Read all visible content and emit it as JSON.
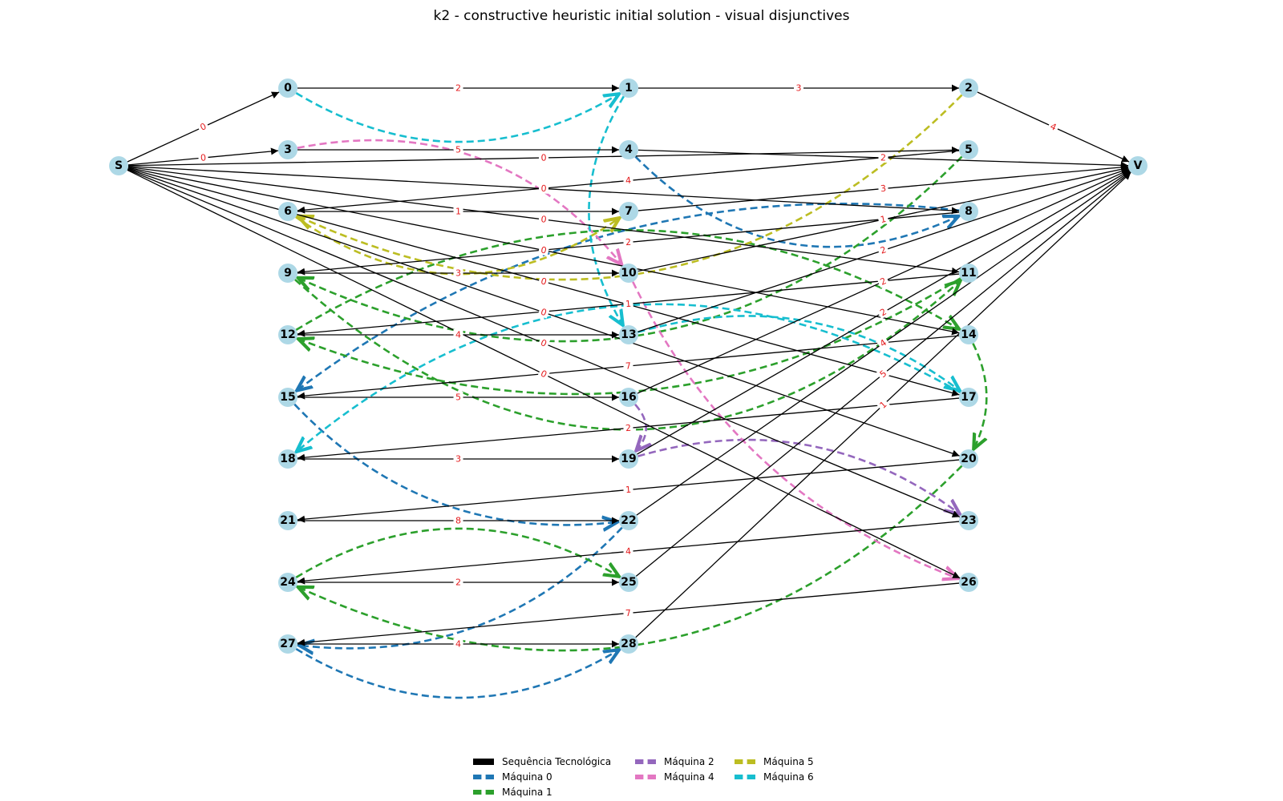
{
  "title": "k2 - constructive heuristic initial solution - visual disjunctives",
  "nodes": [
    "S",
    "0",
    "1",
    "2",
    "3",
    "4",
    "5",
    "6",
    "7",
    "8",
    "9",
    "10",
    "11",
    "12",
    "13",
    "14",
    "15",
    "16",
    "17",
    "18",
    "19",
    "20",
    "21",
    "22",
    "23",
    "24",
    "25",
    "26",
    "27",
    "28",
    "V"
  ],
  "tech_edges": [
    {
      "from": "S",
      "to": "0",
      "w": "0"
    },
    {
      "from": "S",
      "to": "3",
      "w": "0"
    },
    {
      "from": "S",
      "to": "5",
      "w": "0"
    },
    {
      "from": "S",
      "to": "8",
      "w": "0"
    },
    {
      "from": "S",
      "to": "11",
      "w": "0"
    },
    {
      "from": "S",
      "to": "14",
      "w": "0"
    },
    {
      "from": "S",
      "to": "17",
      "w": "0"
    },
    {
      "from": "S",
      "to": "20",
      "w": "0"
    },
    {
      "from": "S",
      "to": "23",
      "w": "0"
    },
    {
      "from": "S",
      "to": "26",
      "w": "0"
    },
    {
      "from": "0",
      "to": "1",
      "w": "2"
    },
    {
      "from": "1",
      "to": "2",
      "w": "3"
    },
    {
      "from": "2",
      "to": "V",
      "w": "4"
    },
    {
      "from": "3",
      "to": "4",
      "w": "5"
    },
    {
      "from": "4",
      "to": "V",
      "w": "2"
    },
    {
      "from": "5",
      "to": "6",
      "w": "4"
    },
    {
      "from": "6",
      "to": "7",
      "w": "1"
    },
    {
      "from": "7",
      "to": "V",
      "w": "3"
    },
    {
      "from": "8",
      "to": "9",
      "w": "2"
    },
    {
      "from": "9",
      "to": "10",
      "w": "3"
    },
    {
      "from": "10",
      "to": "V",
      "w": "1"
    },
    {
      "from": "11",
      "to": "12",
      "w": "1"
    },
    {
      "from": "12",
      "to": "13",
      "w": "4"
    },
    {
      "from": "13",
      "to": "V",
      "w": "2"
    },
    {
      "from": "14",
      "to": "15",
      "w": "7"
    },
    {
      "from": "15",
      "to": "16",
      "w": "5"
    },
    {
      "from": "16",
      "to": "V",
      "w": "2"
    },
    {
      "from": "17",
      "to": "18",
      "w": "2"
    },
    {
      "from": "18",
      "to": "19",
      "w": "3"
    },
    {
      "from": "19",
      "to": "V",
      "w": "2"
    },
    {
      "from": "20",
      "to": "21",
      "w": "1"
    },
    {
      "from": "21",
      "to": "22",
      "w": "8"
    },
    {
      "from": "22",
      "to": "V",
      "w": "4"
    },
    {
      "from": "23",
      "to": "24",
      "w": "4"
    },
    {
      "from": "24",
      "to": "25",
      "w": "2"
    },
    {
      "from": "25",
      "to": "V",
      "w": "5"
    },
    {
      "from": "26",
      "to": "27",
      "w": "7"
    },
    {
      "from": "27",
      "to": "28",
      "w": "4"
    },
    {
      "from": "28",
      "to": "V",
      "w": "1"
    }
  ],
  "disjunctive_edges": [
    {
      "from": "4",
      "to": "8",
      "machine": "Máquina 0"
    },
    {
      "from": "8",
      "to": "15",
      "machine": "Máquina 0"
    },
    {
      "from": "15",
      "to": "22",
      "machine": "Máquina 0"
    },
    {
      "from": "22",
      "to": "27",
      "machine": "Máquina 0"
    },
    {
      "from": "27",
      "to": "28",
      "machine": "Máquina 0"
    },
    {
      "from": "5",
      "to": "9",
      "machine": "Máquina 1"
    },
    {
      "from": "9",
      "to": "11",
      "machine": "Máquina 1"
    },
    {
      "from": "11",
      "to": "12",
      "machine": "Máquina 1"
    },
    {
      "from": "12",
      "to": "14",
      "machine": "Máquina 1"
    },
    {
      "from": "14",
      "to": "20",
      "machine": "Máquina 1"
    },
    {
      "from": "20",
      "to": "24",
      "machine": "Máquina 1"
    },
    {
      "from": "24",
      "to": "25",
      "machine": "Máquina 1"
    },
    {
      "from": "16",
      "to": "19",
      "machine": "Máquina 2"
    },
    {
      "from": "19",
      "to": "23",
      "machine": "Máquina 2"
    },
    {
      "from": "3",
      "to": "10",
      "machine": "Máquina 4"
    },
    {
      "from": "10",
      "to": "26",
      "machine": "Máquina 4"
    },
    {
      "from": "2",
      "to": "6",
      "machine": "Máquina 5"
    },
    {
      "from": "6",
      "to": "7",
      "machine": "Máquina 5"
    },
    {
      "from": "0",
      "to": "1",
      "machine": "Máquina 6"
    },
    {
      "from": "1",
      "to": "13",
      "machine": "Máquina 6"
    },
    {
      "from": "13",
      "to": "17",
      "machine": "Máquina 6"
    },
    {
      "from": "17",
      "to": "18",
      "machine": "Máquina 6"
    }
  ],
  "legend": [
    {
      "label": "Sequência Tecnológica",
      "color": "#000000",
      "style": "solid"
    },
    {
      "label": "Máquina 0",
      "color": "#1f77b4",
      "style": "dashed"
    },
    {
      "label": "Máquina 1",
      "color": "#2ca02c",
      "style": "dashed"
    },
    {
      "label": "Máquina 2",
      "color": "#9467bd",
      "style": "dashed"
    },
    {
      "label": "Máquina 4",
      "color": "#e377c2",
      "style": "dashed"
    },
    {
      "label": "Máquina 5",
      "color": "#bcbd22",
      "style": "dashed"
    },
    {
      "label": "Máquina 6",
      "color": "#17becf",
      "style": "dashed"
    }
  ],
  "colors": {
    "node_fill": "#add8e6",
    "weight_label": "#e41a1c",
    "tech_edge": "#000000"
  }
}
